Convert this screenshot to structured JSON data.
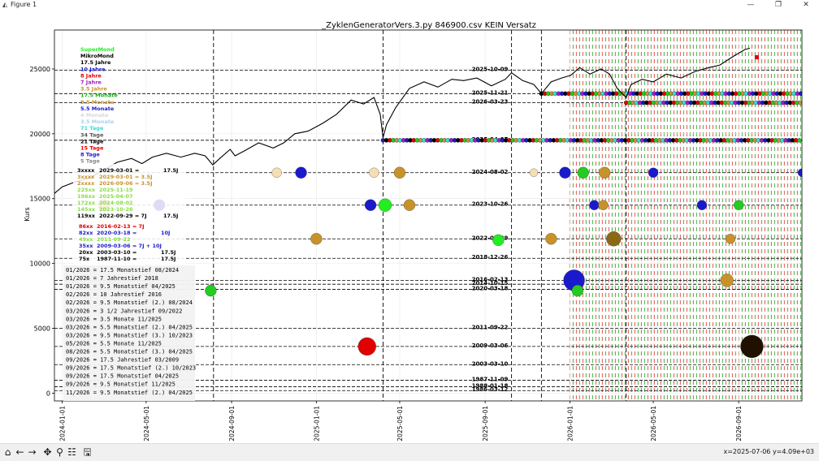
{
  "window": {
    "title": "Figure 1",
    "minimize_icon": "—",
    "maximize_icon": "❐",
    "close_icon": "✕"
  },
  "toolbar": {
    "buttons": [
      {
        "name": "home-icon",
        "glyph": "⌂"
      },
      {
        "name": "back-icon",
        "glyph": "←"
      },
      {
        "name": "forward-icon",
        "glyph": "→"
      },
      {
        "name": "pan-icon",
        "glyph": "✥"
      },
      {
        "name": "zoom-icon",
        "glyph": "⚲"
      },
      {
        "name": "configure-subplots-icon",
        "glyph": "☷"
      },
      {
        "name": "save-icon",
        "glyph": "🖫"
      }
    ],
    "coords_text": "x=2025-07-06 y=4.09e+03"
  },
  "chart_data": {
    "type": "line",
    "title": "_ZyklenGeneratorVers.3.py 846900.csv    KEIN Versatz",
    "ylabel": "Kurs",
    "xlabel": "",
    "ylim": [
      -600,
      28000
    ],
    "xlim": [
      "2023-12-21",
      "2026-12-01"
    ],
    "y_ticks": [
      0,
      5000,
      10000,
      15000,
      20000,
      25000
    ],
    "x_ticks": [
      "2024-01-01",
      "2024-05-01",
      "2024-09-01",
      "2025-01-01",
      "2025-05-01",
      "2025-09-01",
      "2026-01-01",
      "2026-05-01",
      "2026-09-01"
    ],
    "grid": true,
    "price_series": {
      "name": "",
      "color": "#000000",
      "points": [
        [
          "2023-12-21",
          15400
        ],
        [
          "2024-01-01",
          15900
        ],
        [
          "2024-01-20",
          16300
        ],
        [
          "2024-02-10",
          16600
        ],
        [
          "2024-03-01",
          17200
        ],
        [
          "2024-03-20",
          17800
        ],
        [
          "2024-04-10",
          18100
        ],
        [
          "2024-04-25",
          17700
        ],
        [
          "2024-05-10",
          18200
        ],
        [
          "2024-05-30",
          18500
        ],
        [
          "2024-06-20",
          18200
        ],
        [
          "2024-07-10",
          18500
        ],
        [
          "2024-07-25",
          18300
        ],
        [
          "2024-08-05",
          17600
        ],
        [
          "2024-08-15",
          18100
        ],
        [
          "2024-08-30",
          18800
        ],
        [
          "2024-09-06",
          18300
        ],
        [
          "2024-09-20",
          18700
        ],
        [
          "2024-10-10",
          19300
        ],
        [
          "2024-10-31",
          18900
        ],
        [
          "2024-11-15",
          19300
        ],
        [
          "2024-12-01",
          20000
        ],
        [
          "2024-12-20",
          20200
        ],
        [
          "2025-01-10",
          20800
        ],
        [
          "2025-01-30",
          21500
        ],
        [
          "2025-02-20",
          22600
        ],
        [
          "2025-03-10",
          22300
        ],
        [
          "2025-03-25",
          22800
        ],
        [
          "2025-04-03",
          21500
        ],
        [
          "2025-04-07",
          19700
        ],
        [
          "2025-04-12",
          20700
        ],
        [
          "2025-04-25",
          22000
        ],
        [
          "2025-05-15",
          23500
        ],
        [
          "2025-06-05",
          24000
        ],
        [
          "2025-06-25",
          23600
        ],
        [
          "2025-07-15",
          24200
        ],
        [
          "2025-08-01",
          24100
        ],
        [
          "2025-08-20",
          24300
        ],
        [
          "2025-09-10",
          23700
        ],
        [
          "2025-09-30",
          24200
        ],
        [
          "2025-10-09",
          24700
        ],
        [
          "2025-10-25",
          24100
        ],
        [
          "2025-11-10",
          23800
        ],
        [
          "2025-11-21",
          23100
        ],
        [
          "2025-12-05",
          24000
        ],
        [
          "2025-12-20",
          24300
        ],
        [
          "2026-01-02",
          24500
        ],
        [
          "2026-01-15",
          25100
        ],
        [
          "2026-01-30",
          24600
        ],
        [
          "2026-02-15",
          25000
        ],
        [
          "2026-02-27",
          24600
        ],
        [
          "2026-03-10",
          23500
        ],
        [
          "2026-03-23",
          22800
        ],
        [
          "2026-03-30",
          23800
        ],
        [
          "2026-04-15",
          24200
        ],
        [
          "2026-05-01",
          24000
        ],
        [
          "2026-05-20",
          24600
        ],
        [
          "2026-06-10",
          24300
        ],
        [
          "2026-06-30",
          24800
        ],
        [
          "2026-07-20",
          25100
        ],
        [
          "2026-08-05",
          25300
        ],
        [
          "2026-08-25",
          26000
        ],
        [
          "2026-09-10",
          26500
        ],
        [
          "2026-09-17",
          26600
        ]
      ]
    },
    "last_price_marker": {
      "date": "2026-09-27",
      "value": 25900,
      "color": "#e00000"
    },
    "cycle_lines": [
      {
        "label": "2025-10-09",
        "value": 24900
      },
      {
        "label": "2025-11-21",
        "value": 23100
      },
      {
        "label": "2026-03-23",
        "value": 22400
      },
      {
        "label": "2025-04-07",
        "value": 19500
      },
      {
        "label": "2024-08-02",
        "value": 17000
      },
      {
        "label": "2023-10-26",
        "value": 14500
      },
      {
        "label": "2022-09-29",
        "value": 11900
      },
      {
        "label": "2018-12-26",
        "value": 10400
      },
      {
        "label": "2016-02-13",
        "value": 8700
      },
      {
        "label": "2014-10-15",
        "value": 8400
      },
      {
        "label": "2020-03-18",
        "value": 8000
      },
      {
        "label": "2011-09-22",
        "value": 5000
      },
      {
        "label": "2009-03-06",
        "value": 3600
      },
      {
        "label": "2003-03-10",
        "value": 2200
      },
      {
        "label": "1987-11-09",
        "value": 1000
      },
      {
        "label": "1988-01-18",
        "value": 500
      },
      {
        "label": "1986-03-12",
        "value": 200
      }
    ],
    "vertical_lines": [
      "2024-08-06",
      "2025-04-07",
      "2025-10-09",
      "2025-11-21",
      "2026-03-23"
    ],
    "cycle_circles": [
      {
        "date": "2024-03-01",
        "value": 14500,
        "color": "#c8922a",
        "size": 7
      },
      {
        "date": "2024-05-20",
        "value": 14500,
        "color": "#1a1acd",
        "size": 7
      },
      {
        "date": "2024-08-02",
        "value": 7900,
        "color": "#22cc22",
        "size": 7
      },
      {
        "date": "2024-11-05",
        "value": 17000,
        "color": "#f5deb3",
        "size": 6
      },
      {
        "date": "2024-12-10",
        "value": 17000,
        "color": "#1a1acd",
        "size": 7
      },
      {
        "date": "2025-03-20",
        "value": 14500,
        "color": "#1a1acd",
        "size": 7
      },
      {
        "date": "2025-03-25",
        "value": 17000,
        "color": "#f5deb3",
        "size": 6
      },
      {
        "date": "2025-04-10",
        "value": 14500,
        "color": "#22ee22",
        "size": 8
      },
      {
        "date": "2025-05-01",
        "value": 17000,
        "color": "#c8922a",
        "size": 7
      },
      {
        "date": "2025-05-15",
        "value": 14500,
        "color": "#c8922a",
        "size": 7
      },
      {
        "date": "2025-01-01",
        "value": 11900,
        "color": "#c8922a",
        "size": 7
      },
      {
        "date": "2025-03-15",
        "value": 3600,
        "color": "#e00000",
        "size": 11
      },
      {
        "date": "2025-09-20",
        "value": 11800,
        "color": "#22ee22",
        "size": 7
      },
      {
        "date": "2025-11-10",
        "value": 17000,
        "color": "#f5deb3",
        "size": 5
      },
      {
        "date": "2025-12-05",
        "value": 11900,
        "color": "#c8922a",
        "size": 7
      },
      {
        "date": "2025-12-25",
        "value": 17000,
        "color": "#1a1acd",
        "size": 7
      },
      {
        "date": "2026-01-07",
        "value": 8700,
        "color": "#1a1acd",
        "size": 13
      },
      {
        "date": "2026-01-12",
        "value": 7900,
        "color": "#22cc22",
        "size": 7
      },
      {
        "date": "2026-01-20",
        "value": 17000,
        "color": "#22cc22",
        "size": 7
      },
      {
        "date": "2026-02-05",
        "value": 14500,
        "color": "#1a1acd",
        "size": 6
      },
      {
        "date": "2026-02-18",
        "value": 14500,
        "color": "#c8922a",
        "size": 6
      },
      {
        "date": "2026-02-20",
        "value": 17000,
        "color": "#c8922a",
        "size": 7
      },
      {
        "date": "2026-03-05",
        "value": 11900,
        "color": "#8b6914",
        "size": 9
      },
      {
        "date": "2026-05-01",
        "value": 17000,
        "color": "#1a1acd",
        "size": 6
      },
      {
        "date": "2026-07-10",
        "value": 14500,
        "color": "#1a1acd",
        "size": 6
      },
      {
        "date": "2026-08-15",
        "value": 8700,
        "color": "#c8922a",
        "size": 8
      },
      {
        "date": "2026-08-20",
        "value": 11900,
        "color": "#c8922a",
        "size": 6
      },
      {
        "date": "2026-09-01",
        "value": 14500,
        "color": "#22cc22",
        "size": 6
      },
      {
        "date": "2026-09-20",
        "value": 3600,
        "color": "#201000",
        "size": 14
      },
      {
        "date": "2026-12-01",
        "value": 17000,
        "color": "#1a1acd",
        "size": 5
      }
    ],
    "forecast_band": {
      "from": "2026-01-01",
      "to": "2026-12-01",
      "stripe_colors": [
        "#e23b3b",
        "#27a627"
      ]
    },
    "legend_cycles": [
      {
        "label": "SuperMond",
        "color": "#22ee22"
      },
      {
        "label": "MikroMond",
        "color": "#000000"
      },
      {
        "label": "17.5 Jahre",
        "color": "#000000"
      },
      {
        "label": "10 Jahre",
        "color": "#1a1acd"
      },
      {
        "label": "8 Jahre",
        "color": "#e00000"
      },
      {
        "label": "7 Jahre",
        "color": "#a020c0"
      },
      {
        "label": "3.5 Jahre",
        "color": "#c8922a"
      },
      {
        "label": "17.5 Monate",
        "color": "#22aa22"
      },
      {
        "label": "9.5 Monate",
        "color": "#c8922a"
      },
      {
        "label": "5.5 Monate",
        "color": "#1a1acd"
      },
      {
        "label": "4 Monate",
        "color": "#d8d8d8"
      },
      {
        "label": "3.5 Monate",
        "color": "#a8d0f0"
      },
      {
        "label": "71 Tage",
        "color": "#33dddd"
      },
      {
        "label": "34 Tage",
        "color": "#555555"
      },
      {
        "label": "21 Tage",
        "color": "#000000"
      },
      {
        "label": "15 Tage",
        "color": "#e00000"
      },
      {
        "label": "8 Tage",
        "color": "#1a1acd"
      },
      {
        "label": "5 Tage",
        "color": "#888888"
      }
    ],
    "legend_group1": [
      {
        "code": "3xxxx",
        "date": "2029-03-01 =",
        "tag": "17.5J",
        "color": "#000000"
      },
      {
        "code": "3xxxx",
        "date": "2029-03-01 = 3.5J",
        "tag": "",
        "color": "#c8922a"
      },
      {
        "code": "2xxxx",
        "date": "2026-09-06 = 3.5J",
        "tag": "",
        "color": "#c8922a"
      },
      {
        "code": "225xx",
        "date": "2025-11-19",
        "tag": "",
        "color": "#88dd44"
      },
      {
        "code": "196xx",
        "date": "2025-04-07",
        "tag": "",
        "color": "#88dd44"
      },
      {
        "code": "172xx",
        "date": "2024-08-02",
        "tag": "",
        "color": "#88dd44"
      },
      {
        "code": "145xx",
        "date": "2023-10-26",
        "tag": "",
        "color": "#88dd44"
      },
      {
        "code": "119xx",
        "date": "2022-09-29 = 7J",
        "tag": "17.5J",
        "color": "#000000"
      }
    ],
    "legend_group2": [
      {
        "code": "86xx",
        "date": "2016-02-13 = 7J",
        "tag": "",
        "color": "#e00000"
      },
      {
        "code": "82xx",
        "date": "2020-03-18 =",
        "tag": "10J",
        "color": "#1a1acd"
      },
      {
        "code": "49xx",
        "date": "2011-09-22",
        "tag": "",
        "color": "#88dd44"
      },
      {
        "code": "35xx",
        "date": "2009-03-06 = 7J + 10J",
        "tag": "",
        "color": "#1a1acd"
      },
      {
        "code": "20xx",
        "date": "2003-03-10 =",
        "tag": "17.5J",
        "color": "#000000"
      },
      {
        "code": "75x",
        "date": "1987-11-10 =",
        "tag": "17.5J",
        "color": "#000000"
      }
    ],
    "forecast_notes": [
      "01/2026 = 17.5 Monatstief 08/2024",
      "01/2026 = 7 Jahrestief 2018",
      "01/2026 = 9.5 Monatstief 04/2025",
      "02/2026 = 10 Jahrestief 2016",
      "02/2026 = 9.5 Monatstief (2.) 08/2024",
      "03/2026 = 3 1/2 Jahrestief 09/2022",
      "03/2026 = 3.5 Monate 11/2025",
      "03/2026 = 5.5 Monatstief (2.) 04/2025",
      "03/2026 = 9.5 Monatstief (3.) 10/2023",
      "05/2026 = 5.5 Monate 11/2025",
      "08/2026 = 5.5 Monatstief (3.) 04/2025",
      "09/2026 = 17.5 Jahrestief 03/2009",
      "09/2026 = 17.5 Monatstief (2.) 10/2023",
      "09/2026 = 17.5 Monatstief 04/2025",
      "09/2026 = 9.5 Monatstief 11/2025",
      "11/2026 = 9.5 Monatstief (2.) 04/2025"
    ]
  }
}
